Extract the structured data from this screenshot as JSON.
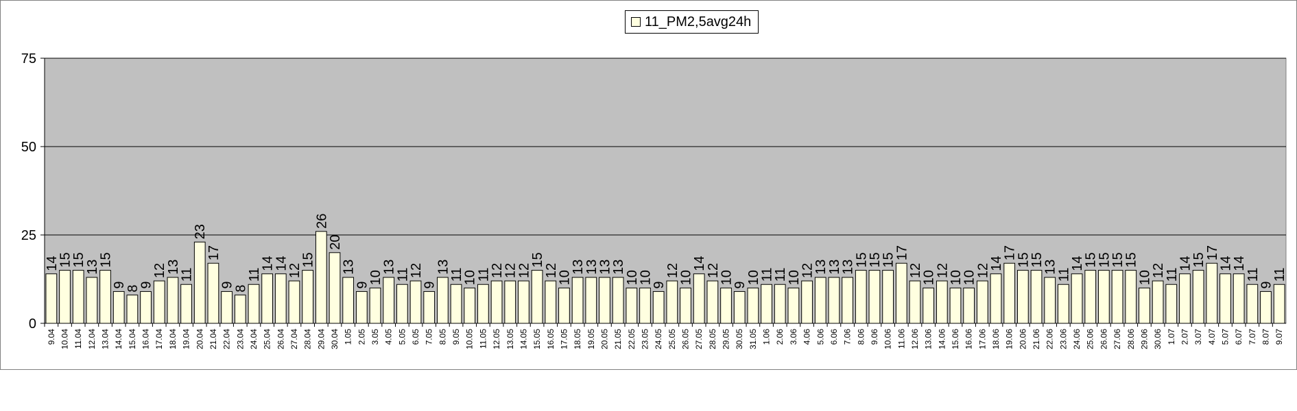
{
  "chart_data": {
    "type": "bar",
    "title": "",
    "xlabel": "",
    "ylabel": "",
    "ylim": [
      0,
      75
    ],
    "yticks": [
      0,
      25,
      50,
      75
    ],
    "grid": true,
    "legend": "top-center",
    "plot_background": "#C0C0C0",
    "bar_color": "#FFFFE0",
    "bar_border": "#000000",
    "series": [
      {
        "name": "11_PM2,5avg24h",
        "values": [
          14,
          15,
          15,
          13,
          15,
          9,
          8,
          9,
          12,
          13,
          11,
          23,
          17,
          9,
          8,
          11,
          14,
          14,
          12,
          15,
          26,
          20,
          13,
          9,
          10,
          13,
          11,
          12,
          9,
          13,
          11,
          10,
          11,
          12,
          12,
          12,
          15,
          12,
          10,
          13,
          13,
          13,
          13,
          10,
          10,
          9,
          12,
          10,
          14,
          12,
          10,
          9,
          10,
          11,
          11,
          10,
          12,
          13,
          13,
          13,
          15,
          15,
          15,
          17,
          12,
          10,
          12,
          10,
          10,
          12,
          14,
          17,
          15,
          15,
          13,
          11,
          14,
          15,
          15,
          15,
          15,
          10,
          12,
          11,
          14,
          15,
          17,
          14,
          14,
          11,
          9,
          11
        ]
      }
    ],
    "categories": [
      "9.04",
      "10.04",
      "11.04",
      "12.04",
      "13.04",
      "14.04",
      "15.04",
      "16.04",
      "17.04",
      "18.04",
      "19.04",
      "20.04",
      "21.04",
      "22.04",
      "23.04",
      "24.04",
      "25.04",
      "26.04",
      "27.04",
      "28.04",
      "29.04",
      "30.04",
      "1.05",
      "2.05",
      "3.05",
      "4.05",
      "5.05",
      "6.05",
      "7.05",
      "8.05",
      "9.05",
      "10.05",
      "11.05",
      "12.05",
      "13.05",
      "14.05",
      "15.05",
      "16.05",
      "17.05",
      "18.05",
      "19.05",
      "20.05",
      "21.05",
      "22.05",
      "23.05",
      "24.05",
      "25.05",
      "26.05",
      "27.05",
      "28.05",
      "29.05",
      "30.05",
      "31.05",
      "1.06",
      "2.06",
      "3.06",
      "4.06",
      "5.06",
      "6.06",
      "7.06",
      "8.06",
      "9.06",
      "10.06",
      "11.06",
      "12.06",
      "13.06",
      "14.06",
      "15.06",
      "16.06",
      "17.06",
      "18.06",
      "19.06",
      "20.06",
      "21.06",
      "22.06",
      "23.06",
      "24.06",
      "25.06",
      "26.06",
      "27.06",
      "28.06",
      "29.06",
      "30.06",
      "1.07",
      "2.07",
      "3.07",
      "4.07",
      "5.07",
      "6.07",
      "7.07",
      "8.07",
      "9.07"
    ]
  }
}
